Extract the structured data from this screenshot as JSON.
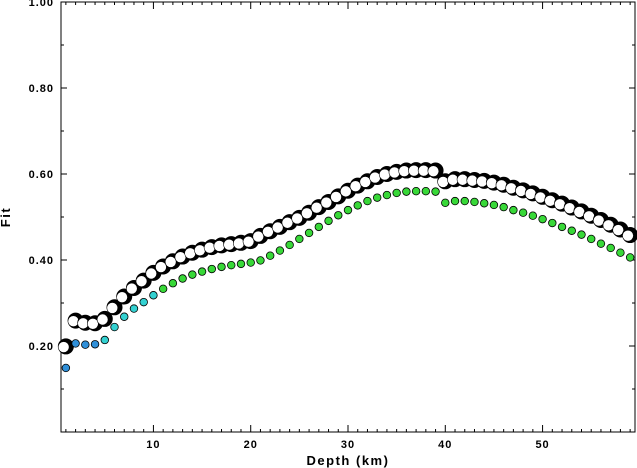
{
  "chart_data": {
    "type": "scatter",
    "xlabel": "Depth (km)",
    "ylabel": "Fit",
    "xlim": [
      0.5,
      59.5
    ],
    "ylim": [
      0,
      1.0
    ],
    "xticks": [
      10,
      20,
      30,
      40,
      50
    ],
    "xtick_labels": [
      "10",
      "20",
      "30",
      "40",
      "50"
    ],
    "yticks": [
      0.2,
      0.4,
      0.6,
      0.8,
      1.0
    ],
    "ytick_labels": [
      "0.20",
      "0.40",
      "0.60",
      "0.80",
      "1.00"
    ],
    "grid": false,
    "legend": "none",
    "series": [
      {
        "marker": "large black/white split circle",
        "x": [
          1,
          2,
          3,
          4,
          5,
          6,
          7,
          8,
          9,
          10,
          11,
          12,
          13,
          14,
          15,
          16,
          17,
          18,
          19,
          20,
          21,
          22,
          23,
          24,
          25,
          26,
          27,
          28,
          29,
          30,
          31,
          32,
          33,
          34,
          35,
          36,
          37,
          38,
          39,
          40,
          41,
          42,
          43,
          44,
          45,
          46,
          47,
          48,
          49,
          50,
          51,
          52,
          53,
          54,
          55,
          56,
          57,
          58,
          59
        ],
        "y": [
          0.199,
          0.259,
          0.254,
          0.253,
          0.263,
          0.29,
          0.315,
          0.335,
          0.352,
          0.37,
          0.385,
          0.397,
          0.408,
          0.417,
          0.424,
          0.43,
          0.434,
          0.437,
          0.44,
          0.444,
          0.456,
          0.467,
          0.477,
          0.488,
          0.498,
          0.51,
          0.523,
          0.535,
          0.548,
          0.561,
          0.573,
          0.583,
          0.593,
          0.6,
          0.605,
          0.608,
          0.609,
          0.609,
          0.608,
          0.583,
          0.588,
          0.588,
          0.586,
          0.584,
          0.58,
          0.575,
          0.568,
          0.562,
          0.555,
          0.547,
          0.539,
          0.531,
          0.522,
          0.513,
          0.503,
          0.493,
          0.482,
          0.471,
          0.458
        ]
      },
      {
        "marker": "small colored dot",
        "x": [
          1,
          2,
          3,
          4,
          5,
          6,
          7,
          8,
          9,
          10,
          11,
          12,
          13,
          14,
          15,
          16,
          17,
          18,
          19,
          20,
          21,
          22,
          23,
          24,
          25,
          26,
          27,
          28,
          29,
          30,
          31,
          32,
          33,
          34,
          35,
          36,
          37,
          38,
          39,
          40,
          41,
          42,
          43,
          44,
          45,
          46,
          47,
          48,
          49,
          50,
          51,
          52,
          53,
          54,
          55,
          56,
          57,
          58,
          59
        ],
        "y": [
          0.149,
          0.206,
          0.203,
          0.204,
          0.214,
          0.244,
          0.268,
          0.287,
          0.302,
          0.318,
          0.333,
          0.346,
          0.357,
          0.366,
          0.373,
          0.379,
          0.384,
          0.388,
          0.391,
          0.394,
          0.399,
          0.41,
          0.422,
          0.435,
          0.449,
          0.463,
          0.477,
          0.491,
          0.504,
          0.516,
          0.527,
          0.537,
          0.545,
          0.551,
          0.556,
          0.559,
          0.56,
          0.56,
          0.559,
          0.533,
          0.537,
          0.537,
          0.535,
          0.532,
          0.528,
          0.523,
          0.516,
          0.51,
          0.503,
          0.495,
          0.486,
          0.477,
          0.468,
          0.459,
          0.449,
          0.438,
          0.428,
          0.417,
          0.406
        ]
      }
    ],
    "colors": {
      "axis": "#000000",
      "outer_marker_fill": "#ffffff",
      "outer_marker_dark": "#000000",
      "dot_stroke": "#000000",
      "dot_shallow": "#2f8fd8",
      "dot_mid": "#33d1d1",
      "dot_deep": "#38d838"
    }
  }
}
